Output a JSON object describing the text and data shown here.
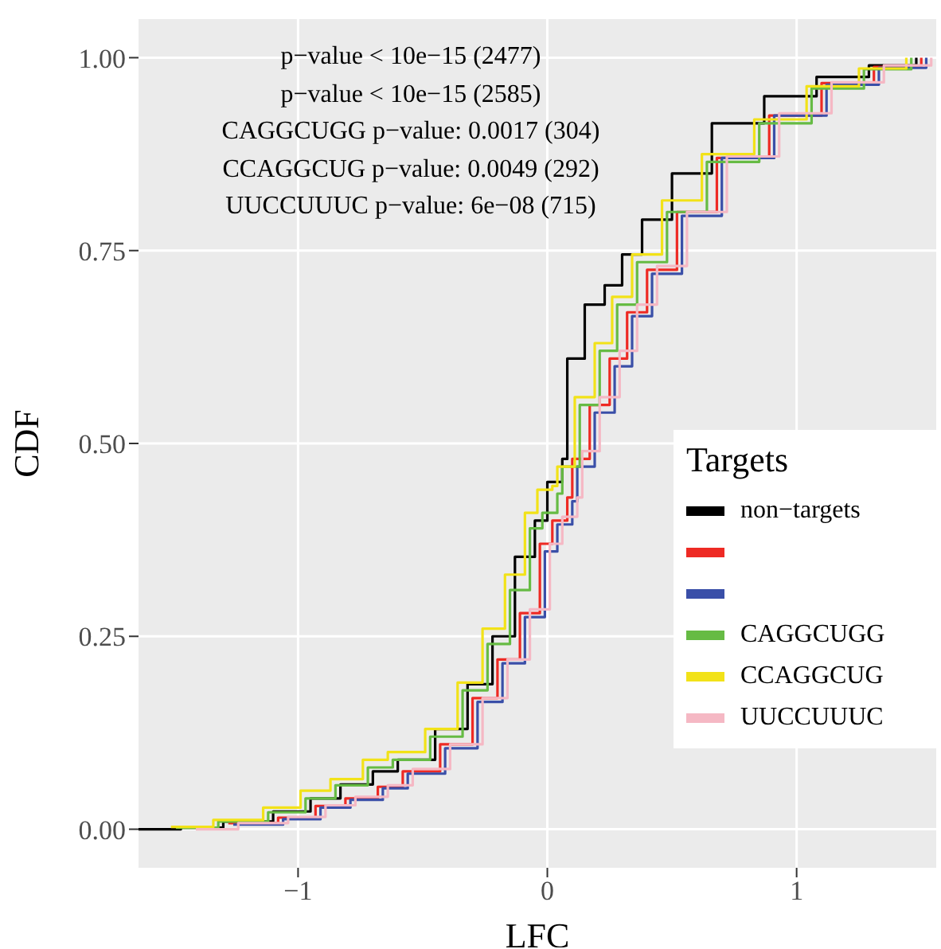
{
  "chart_data": {
    "type": "step",
    "xlabel": "LFC",
    "ylabel": "CDF",
    "legend_title": "Targets",
    "legend": "bottom right",
    "grid": true,
    "xlim": [
      -1.64,
      1.56
    ],
    "xticks": [
      -1,
      0,
      1
    ],
    "ylim": [
      -0.05,
      1.05
    ],
    "yticks": [
      {
        "value": 0,
        "label": "0.00"
      },
      {
        "value": 0.25,
        "label": "0.25"
      },
      {
        "value": 0.5,
        "label": "0.50"
      },
      {
        "value": 0.75,
        "label": "0.75"
      },
      {
        "value": 1,
        "label": "1.00"
      }
    ],
    "annotations": [
      "p−value < 10e−15 (2477)",
      "p−value < 10e−15 (2585)",
      "CAGGCUGG p−value: 0.0017 (304)",
      "CCAGGCUG p−value: 0.0049 (292)",
      "UUCCUUUC p−value: 6e−08 (715)"
    ],
    "series": [
      {
        "name": "non−targets",
        "color": "#000000",
        "x": [
          -1.64,
          -1.47,
          -1.3,
          -1.1,
          -0.95,
          -0.83,
          -0.7,
          -0.6,
          -0.45,
          -0.32,
          -0.22,
          -0.13,
          -0.05,
          0.0,
          0.06,
          0.08,
          0.15,
          0.23,
          0.3,
          0.38,
          0.5,
          0.66,
          0.87,
          1.08,
          1.29,
          1.48
        ],
        "values": [
          0,
          0.002,
          0.01,
          0.023,
          0.04,
          0.058,
          0.075,
          0.09,
          0.13,
          0.188,
          0.25,
          0.353,
          0.4,
          0.45,
          0.48,
          0.61,
          0.68,
          0.705,
          0.745,
          0.79,
          0.85,
          0.915,
          0.95,
          0.975,
          0.99,
          1.0
        ]
      },
      {
        "color": "#ee2a24",
        "x": [
          -1.28,
          -1.08,
          -0.93,
          -0.81,
          -0.68,
          -0.58,
          -0.43,
          -0.3,
          -0.2,
          -0.11,
          -0.03,
          0.02,
          0.08,
          0.1,
          0.17,
          0.25,
          0.32,
          0.4,
          0.52,
          0.68,
          0.89,
          1.1,
          1.31,
          1.5
        ],
        "values": [
          0.008,
          0.015,
          0.03,
          0.04,
          0.055,
          0.075,
          0.11,
          0.17,
          0.22,
          0.28,
          0.37,
          0.4,
          0.43,
          0.48,
          0.55,
          0.61,
          0.67,
          0.725,
          0.8,
          0.87,
          0.925,
          0.967,
          0.988,
          1.0
        ]
      },
      {
        "color": "#3a4fa8",
        "x": [
          -1.26,
          -1.06,
          -0.91,
          -0.79,
          -0.66,
          -0.56,
          -0.41,
          -0.28,
          -0.18,
          -0.09,
          -0.01,
          0.04,
          0.1,
          0.12,
          0.19,
          0.27,
          0.34,
          0.42,
          0.54,
          0.7,
          0.91,
          1.12,
          1.33,
          1.52
        ],
        "values": [
          0.006,
          0.013,
          0.028,
          0.038,
          0.053,
          0.072,
          0.105,
          0.165,
          0.215,
          0.275,
          0.36,
          0.395,
          0.425,
          0.47,
          0.54,
          0.6,
          0.665,
          0.72,
          0.795,
          0.87,
          0.925,
          0.965,
          0.987,
          1.0
        ]
      },
      {
        "name": "CAGGCUGG",
        "color": "#66bb44",
        "x": [
          -1.49,
          -1.32,
          -1.12,
          -0.97,
          -0.85,
          -0.72,
          -0.62,
          -0.47,
          -0.34,
          -0.24,
          -0.15,
          -0.07,
          -0.02,
          0.04,
          0.06,
          0.13,
          0.21,
          0.28,
          0.36,
          0.48,
          0.64,
          0.85,
          1.06,
          1.27,
          1.46
        ],
        "values": [
          0.002,
          0.01,
          0.022,
          0.04,
          0.057,
          0.08,
          0.09,
          0.12,
          0.18,
          0.24,
          0.31,
          0.39,
          0.41,
          0.435,
          0.47,
          0.55,
          0.62,
          0.68,
          0.735,
          0.8,
          0.865,
          0.915,
          0.96,
          0.985,
          1.0
        ]
      },
      {
        "name": "CCAGGCUG",
        "color": "#f2e218",
        "x": [
          -1.51,
          -1.34,
          -1.14,
          -0.99,
          -0.87,
          -0.74,
          -0.64,
          -0.49,
          -0.36,
          -0.26,
          -0.17,
          -0.09,
          -0.04,
          0.02,
          0.04,
          0.11,
          0.19,
          0.26,
          0.34,
          0.46,
          0.62,
          0.83,
          1.04,
          1.25,
          1.44
        ],
        "values": [
          0.003,
          0.012,
          0.028,
          0.05,
          0.065,
          0.09,
          0.1,
          0.13,
          0.19,
          0.26,
          0.33,
          0.41,
          0.44,
          0.445,
          0.47,
          0.56,
          0.63,
          0.69,
          0.745,
          0.815,
          0.875,
          0.92,
          0.963,
          0.986,
          1.0
        ]
      },
      {
        "name": "UUCCUUUC",
        "color": "#f5b8c4",
        "x": [
          -1.41,
          -1.24,
          -1.04,
          -0.89,
          -0.77,
          -0.64,
          -0.54,
          -0.39,
          -0.26,
          -0.16,
          -0.07,
          0.01,
          0.06,
          0.12,
          0.14,
          0.21,
          0.29,
          0.36,
          0.44,
          0.56,
          0.72,
          0.93,
          1.14,
          1.35,
          1.54
        ],
        "values": [
          0,
          0.008,
          0.016,
          0.031,
          0.042,
          0.057,
          0.078,
          0.11,
          0.17,
          0.22,
          0.285,
          0.37,
          0.405,
          0.43,
          0.49,
          0.56,
          0.62,
          0.68,
          0.73,
          0.8,
          0.872,
          0.928,
          0.968,
          0.99,
          1.0
        ]
      }
    ]
  }
}
